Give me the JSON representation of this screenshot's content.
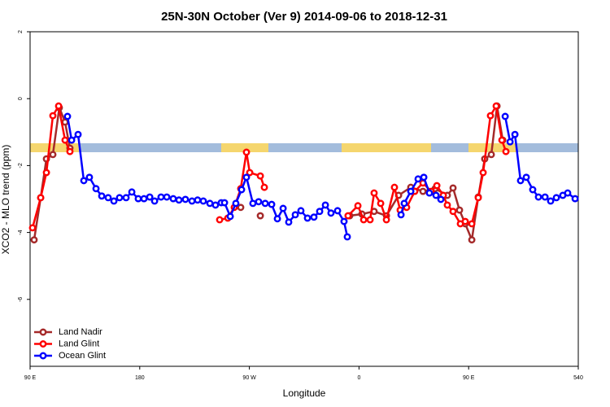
{
  "chart_data": {
    "type": "line",
    "title": "25N-30N October (Ver 9)   2014-09-06 to 2018-12-31",
    "xlabel": "Longitude",
    "ylabel": "XCO2 - MLO trend (ppm)",
    "xlim": [
      90,
      540
    ],
    "xticks": [
      {
        "value": 90,
        "label": "90 E"
      },
      180,
      {
        "value": 270,
        "label": "90 W"
      },
      {
        "value": 360,
        "label": "0"
      },
      {
        "value": 450,
        "label": "90 E"
      },
      540
    ],
    "ylim": [
      -8,
      2
    ],
    "yticks": [
      2,
      0,
      -2,
      -4,
      -6
    ],
    "legend": "bottom-left",
    "series": [
      {
        "name": "Land Nadir",
        "color": "#a52a2a",
        "x": [
          93.3,
          98.7,
          103.4,
          108.7,
          114.0,
          118.7,
          122.7,
          null,
          262.9,
          null,
          279.0,
          null,
          352.4,
          362.4,
          372.4,
          382.5,
          392.5,
          402.5,
          412.5,
          422.5,
          432.5,
          437.2,
          442.5,
          447.2,
          452.6,
          457.9,
          463.2,
          468.6,
          473.3,
          478.0
        ],
        "values": [
          -4.22,
          -2.96,
          -1.8,
          -1.67,
          -0.27,
          -0.7,
          -1.48,
          null,
          -3.25,
          null,
          -3.5,
          null,
          -3.5,
          -3.45,
          -3.37,
          -3.5,
          -2.89,
          -2.65,
          -2.77,
          -2.69,
          -2.89,
          -2.67,
          -3.33,
          -3.74,
          -4.22,
          -2.94,
          -1.8,
          -1.67,
          -0.22,
          -1.24
        ]
      },
      {
        "name": "Land Glint",
        "color": "#ff0000",
        "x": [
          92.0,
          98.7,
          103.4,
          108.7,
          113.4,
          118.7,
          122.7,
          null,
          245.6,
          252.3,
          257.6,
          262.9,
          267.6,
          270.3,
          279.0,
          282.3,
          null,
          351.0,
          359.1,
          363.8,
          369.1,
          372.4,
          377.8,
          382.5,
          389.1,
          393.8,
          399.1,
          405.8,
          412.5,
          419.2,
          423.9,
          429.2,
          432.5,
          437.2,
          443.2,
          447.2,
          452.6,
          457.9,
          461.9,
          467.9,
          472.6,
          477.3,
          480.6
        ],
        "values": [
          -3.86,
          -2.96,
          -2.21,
          -0.51,
          -0.22,
          -1.24,
          -1.58,
          null,
          -3.62,
          -3.57,
          -3.25,
          -2.69,
          -1.6,
          -2.21,
          -2.31,
          -2.65,
          null,
          -3.5,
          -3.2,
          -3.62,
          -3.62,
          -2.82,
          -3.13,
          -3.62,
          -2.65,
          -3.33,
          -3.25,
          -2.77,
          -2.52,
          -2.77,
          -2.6,
          -2.89,
          -3.18,
          -3.37,
          -3.74,
          -3.67,
          -3.74,
          -2.96,
          -2.21,
          -0.51,
          -0.22,
          -1.24,
          -1.58
        ]
      },
      {
        "name": "Ocean Glint",
        "color": "#0000ff",
        "x": [
          120.7,
          124.1,
          129.4,
          134.1,
          138.7,
          144.1,
          148.8,
          154.1,
          158.8,
          163.4,
          168.8,
          173.5,
          178.8,
          183.5,
          188.2,
          192.2,
          197.5,
          202.2,
          207.5,
          212.2,
          217.5,
          222.9,
          227.5,
          232.2,
          237.6,
          242.2,
          246.9,
          249.6,
          254.3,
          258.9,
          263.6,
          267.6,
          272.9,
          277.6,
          283.0,
          288.3,
          293.0,
          297.7,
          302.3,
          307.7,
          312.3,
          317.7,
          323.0,
          327.7,
          332.4,
          337.0,
          342.4,
          347.7,
          350.4,
          null,
          394.5,
          397.1,
          402.5,
          408.5,
          413.2,
          417.8,
          423.2,
          427.2,
          null,
          480.0,
          484.0,
          488.0,
          492.6,
          497.3,
          502.6,
          507.3,
          512.7,
          517.3,
          522.0,
          527.3,
          531.3,
          537.4
        ],
        "values": [
          -0.53,
          -1.24,
          -1.07,
          -2.45,
          -2.35,
          -2.69,
          -2.91,
          -2.96,
          -3.06,
          -2.96,
          -2.96,
          -2.79,
          -2.99,
          -2.99,
          -2.94,
          -3.06,
          -2.94,
          -2.94,
          -2.99,
          -3.03,
          -3.01,
          -3.06,
          -3.03,
          -3.06,
          -3.13,
          -3.18,
          -3.11,
          -3.11,
          -3.52,
          -3.13,
          -2.72,
          -2.35,
          -3.13,
          -3.08,
          -3.13,
          -3.16,
          -3.59,
          -3.28,
          -3.69,
          -3.47,
          -3.35,
          -3.57,
          -3.54,
          -3.37,
          -3.18,
          -3.42,
          -3.35,
          -3.67,
          -4.13,
          null,
          -3.47,
          -3.13,
          -2.77,
          -2.4,
          -2.35,
          -2.82,
          -2.89,
          -3.01,
          null,
          -0.53,
          -1.29,
          -1.07,
          -2.45,
          -2.35,
          -2.72,
          -2.94,
          -2.94,
          -3.06,
          -2.96,
          -2.89,
          -2.82,
          -2.99
        ]
      }
    ]
  }
}
